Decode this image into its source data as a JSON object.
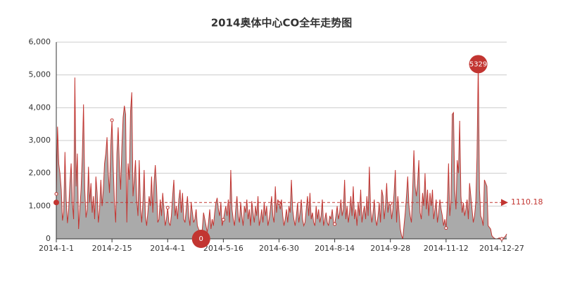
{
  "chart_data": {
    "type": "line",
    "title": "2014奥体中心CO全年走势图",
    "categories": [
      "2014-1-1",
      null,
      null,
      null,
      null,
      null,
      null,
      null,
      null,
      null,
      null,
      null,
      null,
      null,
      null,
      null,
      null,
      null,
      null,
      null,
      null,
      null,
      null,
      null,
      null,
      null,
      null,
      null,
      null,
      null,
      null,
      null,
      null,
      null,
      null,
      null,
      null,
      null,
      null,
      null,
      null,
      null,
      null,
      null,
      null,
      "2014-2-15",
      null,
      null,
      null,
      null,
      null,
      null,
      null,
      null,
      null,
      null,
      null,
      null,
      null,
      null,
      null,
      null,
      null,
      null,
      null,
      null,
      null,
      null,
      null,
      null,
      null,
      null,
      null,
      null,
      null,
      null,
      null,
      null,
      null,
      null,
      null,
      null,
      null,
      null,
      null,
      null,
      null,
      null,
      null,
      null,
      "2014-4-1",
      null,
      null,
      null,
      null,
      null,
      null,
      null,
      null,
      null,
      null,
      null,
      null,
      null,
      null,
      null,
      null,
      null,
      null,
      null,
      null,
      null,
      null,
      null,
      null,
      null,
      null,
      null,
      null,
      null,
      null,
      null,
      null,
      null,
      null,
      null,
      null,
      null,
      null,
      null,
      null,
      null,
      null,
      null,
      null,
      "2014-5-16",
      null,
      null,
      null,
      null,
      null,
      null,
      null,
      null,
      null,
      null,
      null,
      null,
      null,
      null,
      null,
      null,
      null,
      null,
      null,
      null,
      null,
      null,
      null,
      null,
      null,
      null,
      null,
      null,
      null,
      null,
      null,
      null,
      null,
      null,
      null,
      null,
      null,
      null,
      null,
      null,
      null,
      null,
      null,
      null,
      "2014-6-30",
      null,
      null,
      null,
      null,
      null,
      null,
      null,
      null,
      null,
      null,
      null,
      null,
      null,
      null,
      null,
      null,
      null,
      null,
      null,
      null,
      null,
      null,
      null,
      null,
      null,
      null,
      null,
      null,
      null,
      null,
      null,
      null,
      null,
      null,
      null,
      null,
      null,
      null,
      null,
      null,
      null,
      null,
      null,
      null,
      "2014-8-14",
      null,
      null,
      null,
      null,
      null,
      null,
      null,
      null,
      null,
      null,
      null,
      null,
      null,
      null,
      null,
      null,
      null,
      null,
      null,
      null,
      null,
      null,
      null,
      null,
      null,
      null,
      null,
      null,
      null,
      null,
      null,
      null,
      null,
      null,
      null,
      null,
      null,
      null,
      null,
      null,
      null,
      null,
      null,
      null,
      "2014-9-28",
      null,
      null,
      null,
      null,
      null,
      null,
      null,
      null,
      null,
      null,
      null,
      null,
      null,
      null,
      null,
      null,
      null,
      null,
      null,
      null,
      null,
      null,
      null,
      null,
      null,
      null,
      null,
      null,
      null,
      null,
      null,
      null,
      null,
      null,
      null,
      null,
      null,
      null,
      null,
      null,
      null,
      null,
      null,
      null,
      "2014-11-12",
      null,
      null,
      null,
      null,
      null,
      null,
      null,
      null,
      null,
      null,
      null,
      null,
      null,
      null,
      null,
      null,
      null,
      null,
      null,
      null,
      null,
      null,
      null,
      null,
      null,
      null,
      null,
      null,
      null,
      null,
      null,
      null,
      null,
      null,
      null,
      null,
      null,
      null,
      null,
      null,
      null,
      null,
      null,
      null,
      "2014-12-27",
      null,
      null,
      null,
      null
    ],
    "values": [
      1370,
      3420,
      2280,
      1980,
      1500,
      560,
      820,
      2650,
      1200,
      480,
      900,
      1700,
      2300,
      1100,
      600,
      4920,
      1600,
      2600,
      300,
      900,
      1500,
      2500,
      4100,
      1500,
      650,
      900,
      2200,
      1100,
      1700,
      800,
      1300,
      600,
      1900,
      1400,
      500,
      900,
      1800,
      1000,
      1500,
      2300,
      2600,
      3100,
      2000,
      1400,
      2800,
      3620,
      2200,
      1100,
      500,
      2600,
      3400,
      2200,
      1500,
      2800,
      3700,
      4060,
      3800,
      500,
      2300,
      1800,
      3900,
      4470,
      1300,
      1800,
      2400,
      1200,
      700,
      2400,
      1000,
      500,
      1100,
      2100,
      700,
      400,
      800,
      1300,
      1000,
      1900,
      800,
      1700,
      2250,
      1600,
      500,
      600,
      1200,
      700,
      1400,
      900,
      400,
      600,
      950,
      500,
      400,
      700,
      1300,
      1800,
      700,
      1000,
      600,
      1200,
      1500,
      800,
      1400,
      600,
      500,
      900,
      1300,
      700,
      400,
      1100,
      800,
      500,
      600,
      900,
      400,
      300,
      200,
      0,
      300,
      800,
      600,
      400,
      200,
      500,
      900,
      300,
      600,
      400,
      800,
      1100,
      1250,
      900,
      700,
      1100,
      400,
      580,
      800,
      1000,
      700,
      1200,
      500,
      2100,
      900,
      600,
      400,
      900,
      1300,
      700,
      500,
      1100,
      700,
      400,
      1000,
      800,
      1200,
      600,
      900,
      400,
      1150,
      800,
      500,
      1000,
      700,
      1300,
      400,
      600,
      900,
      500,
      1100,
      700,
      1000,
      400,
      600,
      900,
      1300,
      700,
      500,
      1600,
      800,
      1200,
      1100,
      900,
      1200,
      700,
      400,
      600,
      900,
      500,
      1000,
      800,
      1800,
      900,
      600,
      400,
      700,
      1100,
      500,
      800,
      1200,
      600,
      400,
      500,
      900,
      1300,
      700,
      1400,
      600,
      800,
      500,
      400,
      1000,
      600,
      900,
      500,
      700,
      1200,
      400,
      600,
      800,
      500,
      400,
      700,
      600,
      900,
      500,
      450,
      700,
      1000,
      600,
      800,
      1200,
      700,
      900,
      1800,
      600,
      1000,
      500,
      800,
      1300,
      700,
      1600,
      600,
      900,
      400,
      1100,
      700,
      1500,
      500,
      800,
      1000,
      600,
      1300,
      700,
      2200,
      900,
      500,
      800,
      1200,
      600,
      400,
      700,
      1100,
      500,
      1500,
      1300,
      600,
      1000,
      1700,
      800,
      1100,
      1080,
      600,
      900,
      1400,
      2100,
      500,
      1300,
      800,
      300,
      100,
      0,
      400,
      800,
      1300,
      1900,
      1000,
      700,
      500,
      1500,
      2700,
      1600,
      1300,
      1700,
      2400,
      800,
      600,
      1400,
      1000,
      2000,
      900,
      1500,
      700,
      1400,
      1000,
      1500,
      600,
      900,
      1200,
      500,
      800,
      1200,
      900,
      700,
      400,
      600,
      330,
      1000,
      2300,
      700,
      1200,
      3800,
      3850,
      1500,
      900,
      2400,
      2000,
      3600,
      1300,
      800,
      1100,
      700,
      900,
      1200,
      600,
      1700,
      1300,
      900,
      500,
      700,
      1100,
      2500,
      5329,
      1500,
      700,
      600,
      400,
      1800,
      1700,
      1600,
      400,
      350,
      300,
      100,
      50,
      20,
      0,
      0,
      10,
      30,
      10,
      0,
      20,
      40,
      80,
      150
    ],
    "color": "#c23531",
    "area_color": "#aaaaaa",
    "max": 5329,
    "min": 0,
    "average": 1110.18,
    "ylim": [
      0,
      6000
    ],
    "yticks": [
      0,
      {
        "value": 1000,
        "label": "1,000"
      },
      {
        "value": 2000,
        "label": "2,000"
      },
      {
        "value": 3000,
        "label": "3,000"
      },
      {
        "value": 4000,
        "label": "4,000"
      },
      {
        "value": 5000,
        "label": "5,000"
      },
      {
        "value": 6000,
        "label": "6,000"
      }
    ],
    "grid": true
  }
}
